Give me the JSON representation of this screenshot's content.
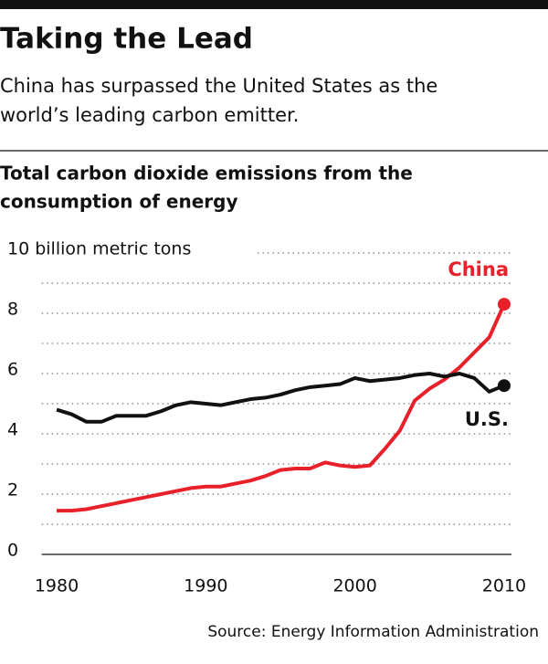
{
  "chart_data": {
    "type": "line",
    "title": "Taking the Lead",
    "subtitle": [
      "China has surpassed the United States as the",
      "world’s leading carbon emitter."
    ],
    "chart_title": [
      "Total carbon dioxide emissions from the",
      "consumption of energy"
    ],
    "source": "Source: Energy Information Administration",
    "x": [
      1980,
      1981,
      1982,
      1983,
      1984,
      1985,
      1986,
      1987,
      1988,
      1989,
      1990,
      1991,
      1992,
      1993,
      1994,
      1995,
      1996,
      1997,
      1998,
      1999,
      2000,
      2001,
      2002,
      2003,
      2004,
      2005,
      2006,
      2007,
      2008,
      2009,
      2010
    ],
    "series": [
      {
        "name": "China",
        "color": "#e8202a",
        "values": [
          1.45,
          1.45,
          1.5,
          1.6,
          1.7,
          1.8,
          1.9,
          2.0,
          2.1,
          2.2,
          2.25,
          2.25,
          2.35,
          2.45,
          2.6,
          2.8,
          2.85,
          2.85,
          3.05,
          2.95,
          2.9,
          2.95,
          3.5,
          4.1,
          5.1,
          5.5,
          5.8,
          6.2,
          6.7,
          7.2,
          8.3
        ]
      },
      {
        "name": "U.S.",
        "color": "#111111",
        "values": [
          4.8,
          4.65,
          4.4,
          4.4,
          4.6,
          4.6,
          4.6,
          4.75,
          4.95,
          5.05,
          5.0,
          4.95,
          5.05,
          5.15,
          5.2,
          5.3,
          5.45,
          5.55,
          5.6,
          5.65,
          5.85,
          5.75,
          5.8,
          5.85,
          5.95,
          6.0,
          5.9,
          6.0,
          5.85,
          5.4,
          5.6
        ]
      }
    ],
    "xlim": [
      1979,
      2011
    ],
    "xticks": [
      1980,
      1990,
      2000,
      2010
    ],
    "ylim": [
      0,
      10
    ],
    "yticks": [
      0,
      2,
      4,
      6,
      8,
      {
        "value": 10,
        "label": "10 billion metric tons"
      }
    ],
    "yminor": [
      1,
      3,
      5,
      7,
      9
    ],
    "grid": true
  }
}
